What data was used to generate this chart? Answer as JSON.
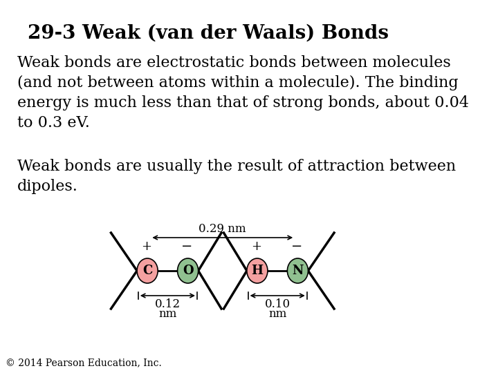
{
  "title": "29-3 Weak (van der Waals) Bonds",
  "title_fontsize": 20,
  "title_fontweight": "bold",
  "body_text_1": "Weak bonds are electrostatic bonds between molecules\n(and not between atoms within a molecule). The binding\nenergy is much less than that of strong bonds, about 0.04\nto 0.3 eV.",
  "body_text_2": "Weak bonds are usually the result of attraction between\ndipoles.",
  "footer_text": "© 2014 Pearson Education, Inc.",
  "background_color": "#ffffff",
  "text_color": "#000000",
  "atom_C_color": "#f4a0a0",
  "atom_O_color": "#90c090",
  "atom_H_color": "#f4a0a0",
  "atom_N_color": "#90c090",
  "body_fontsize": 16,
  "footer_fontsize": 10
}
